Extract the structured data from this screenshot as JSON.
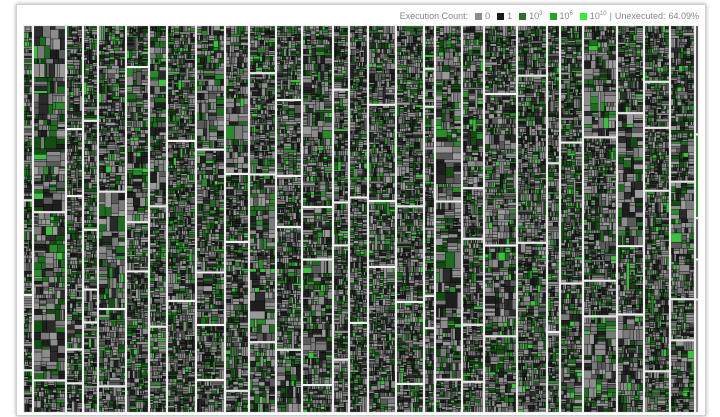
{
  "legend": {
    "title": "Execution Count:",
    "items": [
      {
        "base": "0",
        "exp": "",
        "color": "#8c8c8c"
      },
      {
        "base": "1",
        "exp": "",
        "color": "#1a1a1a"
      },
      {
        "base": "10",
        "exp": "3",
        "color": "#2f6f2f"
      },
      {
        "base": "10",
        "exp": "6",
        "color": "#2aa32a"
      },
      {
        "base": "10",
        "exp": "10",
        "color": "#33ee33"
      }
    ],
    "separator": "|",
    "unexecuted_label": "Unexecuted:",
    "unexecuted_value": "64.09%"
  },
  "colors": {
    "background": "#ffffff",
    "divider": "#f0f0f0"
  }
}
